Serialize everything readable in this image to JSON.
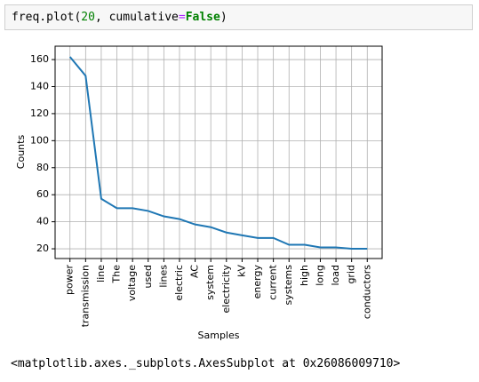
{
  "code": [
    "freq.plot(",
    "20",
    ", cumulative",
    "=",
    "False",
    ")"
  ],
  "chart_data": {
    "type": "line",
    "xlabel": "Samples",
    "ylabel": "Counts",
    "categories": [
      "power",
      "transmission",
      "line",
      "The",
      "voltage",
      "used",
      "lines",
      "electric",
      "AC",
      "system",
      "electricity",
      "kV",
      "energy",
      "current",
      "systems",
      "high",
      "long",
      "load",
      "grid",
      "conductors"
    ],
    "values": [
      162,
      148,
      57,
      50,
      50,
      48,
      44,
      42,
      38,
      36,
      32,
      30,
      28,
      28,
      23,
      23,
      21,
      21,
      20,
      20
    ],
    "color": "#1f77b4",
    "ylim": [
      12.8,
      169.9
    ],
    "yticks": [
      20,
      40,
      60,
      80,
      100,
      120,
      140,
      160
    ],
    "grid": true
  },
  "output": "<matplotlib.axes._subplots.AxesSubplot at 0x26086009710>"
}
